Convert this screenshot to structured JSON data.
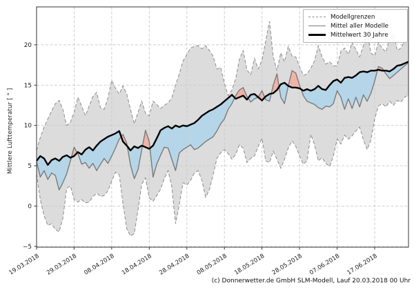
{
  "caption": "(c) Donnerwetter.de GmbH SLM-Modell, Lauf 20.03.2018 00 Uhr",
  "colors": {
    "band_fill": "#dcdcdc",
    "bound_stroke": "#8c8c8c",
    "blue_fill": "#b5d6e8",
    "red_fill": "#f0b3a6",
    "gray_line": "#7a7a7a",
    "black_line": "#000000",
    "grid": "#c9c9c9",
    "spine": "#333333",
    "text": "#1a1a1a"
  },
  "legend": {
    "items": [
      {
        "label": "Modellgrenzen",
        "style": "dashed-gray"
      },
      {
        "label": "Mittel aller Modelle",
        "style": "solid-gray"
      },
      {
        "label": "Mittelwert 30 Jahre",
        "style": "thick-black"
      }
    ]
  },
  "chart_data": {
    "type": "line",
    "title": "",
    "ylabel": "Mittlere Lufttemperatur [ ° ]",
    "xlabel": "",
    "ylim": [
      -5.1,
      24.7
    ],
    "y_ticks": [
      -5,
      0,
      5,
      10,
      15,
      20
    ],
    "days": 99,
    "x_ticks": {
      "days": [
        0,
        10,
        20,
        30,
        40,
        50,
        60,
        70,
        80,
        90
      ],
      "labels": [
        "19.03.2018",
        "29.03.2018",
        "08.04.2018",
        "18.04.2018",
        "28.04.2018",
        "08.05.2018",
        "18.05.2018",
        "28.05.2018",
        "07.06.2018",
        "17.06.2018"
      ]
    },
    "grid": true,
    "legend_position": "upper right",
    "series": [
      {
        "name": "Modellgrenze oben",
        "role": "upper_bound",
        "values": [
          6.9,
          8.5,
          9.8,
          10.8,
          11.8,
          12.7,
          13.1,
          12.0,
          10.0,
          10.4,
          11.6,
          13.5,
          12.4,
          11.2,
          12.4,
          13.6,
          14.1,
          12.2,
          12.0,
          13.4,
          15.6,
          14.6,
          13.9,
          14.9,
          13.9,
          12.0,
          10.2,
          11.6,
          13.0,
          11.5,
          11.2,
          13.0,
          12.6,
          12.1,
          12.5,
          12.8,
          13.4,
          15.0,
          16.4,
          18.0,
          18.8,
          19.6,
          19.8,
          19.9,
          19.5,
          19.9,
          19.3,
          18.6,
          17.0,
          17.2,
          15.2,
          13.7,
          14.4,
          15.8,
          18.2,
          19.3,
          16.9,
          16.3,
          18.3,
          17.0,
          18.1,
          20.5,
          22.9,
          18.5,
          16.8,
          19.0,
          17.9,
          19.8,
          18.6,
          18.5,
          17.3,
          16.2,
          16.4,
          17.1,
          18.0,
          19.9,
          18.5,
          17.6,
          17.9,
          17.4,
          17.4,
          19.2,
          19.6,
          18.8,
          20.3,
          19.4,
          18.5,
          19.9,
          21.6,
          19.0,
          18.6,
          20.3,
          19.6,
          19.1,
          20.8,
          21.4,
          19.3,
          19.6,
          20.5,
          20.2
        ]
      },
      {
        "name": "Modellgrenze unten",
        "role": "lower_bound",
        "values": [
          4.0,
          0.8,
          -1.2,
          -2.4,
          -2.2,
          -2.9,
          -3.2,
          -1.5,
          2.2,
          2.5,
          0.8,
          0.5,
          0.8,
          0.4,
          0.5,
          1.2,
          1.6,
          1.2,
          1.3,
          1.9,
          3.1,
          4.2,
          3.9,
          0.3,
          -2.8,
          -3.7,
          -3.4,
          -0.5,
          2.7,
          3.5,
          1.0,
          0.6,
          1.3,
          2.1,
          3.4,
          4.4,
          2.4,
          -2.2,
          0.2,
          2.9,
          2.6,
          3.2,
          4.1,
          4.4,
          3.2,
          1.1,
          2.0,
          3.9,
          5.9,
          6.6,
          7.0,
          6.5,
          5.8,
          6.4,
          7.6,
          7.2,
          5.4,
          5.9,
          6.2,
          7.4,
          8.4,
          5.6,
          5.4,
          6.8,
          5.8,
          4.7,
          5.8,
          7.2,
          8.1,
          7.4,
          6.2,
          5.2,
          5.6,
          8.9,
          7.6,
          5.6,
          6.0,
          5.3,
          4.9,
          6.2,
          8.3,
          7.7,
          8.8,
          8.3,
          8.7,
          9.3,
          9.8,
          8.2,
          7.0,
          8.2,
          10.8,
          12.4,
          12.7,
          12.3,
          13.0,
          12.5,
          13.1,
          12.9,
          13.5,
          13.8
        ]
      },
      {
        "name": "Mittel aller Modelle",
        "role": "model_mean",
        "values": [
          5.5,
          3.6,
          4.4,
          3.3,
          4.1,
          3.8,
          2.0,
          2.9,
          4.0,
          5.6,
          7.3,
          6.5,
          5.2,
          5.4,
          4.7,
          5.3,
          4.4,
          5.2,
          5.9,
          5.3,
          6.2,
          7.2,
          8.3,
          8.9,
          7.8,
          5.1,
          3.4,
          4.5,
          7.0,
          9.4,
          8.0,
          3.6,
          5.2,
          6.3,
          7.3,
          7.2,
          5.8,
          4.4,
          6.6,
          7.0,
          7.3,
          7.6,
          7.0,
          7.2,
          7.6,
          8.0,
          8.3,
          8.6,
          9.3,
          10.2,
          10.8,
          12.0,
          12.7,
          13.7,
          14.4,
          14.7,
          13.6,
          12.9,
          13.3,
          13.5,
          14.3,
          13.2,
          13.0,
          15.0,
          16.4,
          13.5,
          12.7,
          14.9,
          16.8,
          16.5,
          15.0,
          13.7,
          13.0,
          12.8,
          12.6,
          12.2,
          12.0,
          12.4,
          12.3,
          12.7,
          14.3,
          13.5,
          12.0,
          13.3,
          12.1,
          13.5,
          12.3,
          13.8,
          13.0,
          14.0,
          15.5,
          17.3,
          17.1,
          16.4,
          15.8,
          16.2,
          16.6,
          17.0,
          17.4,
          17.8
        ]
      },
      {
        "name": "Mittelwert 30 Jahre",
        "role": "climate_mean",
        "values": [
          5.6,
          6.2,
          5.9,
          5.1,
          5.7,
          5.9,
          5.6,
          6.1,
          6.3,
          6.0,
          6.2,
          6.7,
          6.4,
          7.0,
          7.3,
          6.9,
          7.5,
          8.0,
          8.3,
          8.6,
          8.8,
          9.0,
          9.3,
          8.0,
          7.5,
          6.9,
          7.4,
          7.2,
          7.5,
          7.3,
          7.1,
          7.5,
          8.4,
          9.4,
          9.7,
          9.9,
          9.6,
          10.0,
          9.8,
          10.0,
          9.9,
          10.1,
          10.3,
          10.7,
          11.2,
          11.5,
          11.8,
          12.0,
          12.3,
          12.6,
          13.0,
          13.4,
          13.8,
          13.3,
          13.5,
          13.7,
          13.2,
          13.8,
          13.9,
          13.5,
          13.1,
          13.6,
          13.9,
          14.0,
          14.4,
          15.1,
          15.3,
          14.9,
          14.7,
          14.7,
          14.6,
          14.3,
          14.5,
          14.3,
          14.5,
          14.9,
          14.5,
          14.4,
          15.0,
          15.5,
          15.7,
          15.3,
          15.9,
          16.0,
          15.9,
          16.2,
          16.6,
          16.7,
          16.6,
          16.8,
          16.8,
          16.9,
          16.8,
          16.8,
          16.7,
          17.0,
          17.4,
          17.5,
          17.7,
          17.9
        ]
      }
    ]
  }
}
